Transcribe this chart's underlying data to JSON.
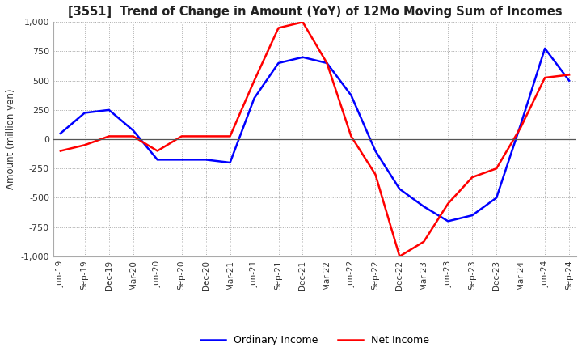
{
  "title": "[3551]  Trend of Change in Amount (YoY) of 12Mo Moving Sum of Incomes",
  "ylabel": "Amount (million yen)",
  "ylim": [
    -1000,
    1000
  ],
  "yticks": [
    -1000,
    -750,
    -500,
    -250,
    0,
    250,
    500,
    750,
    1000
  ],
  "x_labels": [
    "Jun-19",
    "Sep-19",
    "Dec-19",
    "Mar-20",
    "Jun-20",
    "Sep-20",
    "Dec-20",
    "Mar-21",
    "Jun-21",
    "Sep-21",
    "Dec-21",
    "Mar-22",
    "Jun-22",
    "Sep-22",
    "Dec-22",
    "Mar-23",
    "Jun-23",
    "Sep-23",
    "Dec-23",
    "Mar-24",
    "Jun-24",
    "Sep-24"
  ],
  "ordinary_income": [
    50,
    225,
    250,
    75,
    -175,
    -175,
    -175,
    -200,
    350,
    650,
    700,
    650,
    375,
    -100,
    -425,
    -575,
    -700,
    -650,
    -500,
    125,
    775,
    500
  ],
  "net_income": [
    -100,
    -50,
    25,
    25,
    -100,
    25,
    25,
    25,
    500,
    950,
    1000,
    650,
    25,
    -300,
    -1000,
    -875,
    -550,
    -325,
    -250,
    100,
    525,
    550
  ],
  "ordinary_color": "#0000ff",
  "net_color": "#ff0000",
  "grid_color": "#aaaaaa",
  "background_color": "#ffffff",
  "legend_labels": [
    "Ordinary Income",
    "Net Income"
  ]
}
